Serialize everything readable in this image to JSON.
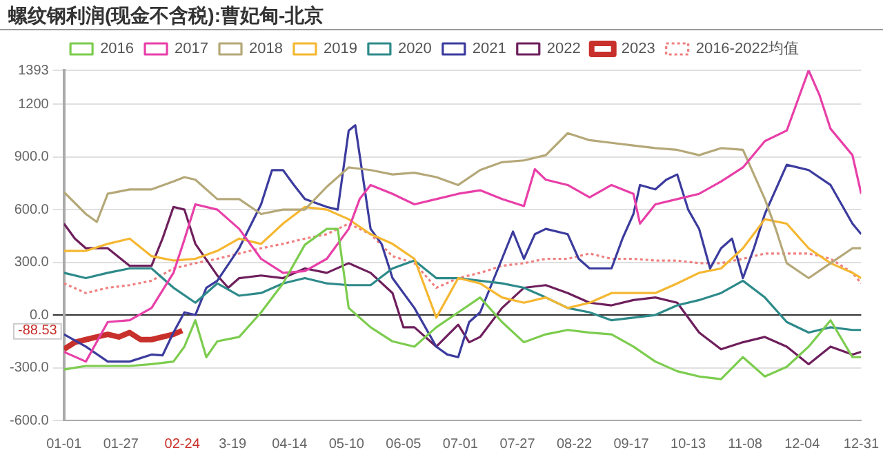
{
  "chart_data": {
    "type": "line",
    "title": "螺纹钢利润(现金不含税):曹妃甸-北京",
    "x": [
      "--01-01",
      "--01-11",
      "--01-21",
      "--01-31",
      "--02-10",
      "--02-20",
      "--03-02",
      "--03-12",
      "--03-22",
      "--04-01",
      "--04-11",
      "--04-21",
      "--05-01",
      "--05-11",
      "--05-21",
      "--05-31",
      "--06-10",
      "--06-20",
      "--06-30",
      "--07-10",
      "--07-20",
      "--07-30",
      "--08-09",
      "--08-19",
      "--08-29",
      "--09-08",
      "--09-18",
      "--09-28",
      "--10-08",
      "--10-18",
      "--10-28",
      "--11-07",
      "--11-17",
      "--11-27",
      "--12-07",
      "--12-17",
      "--12-27",
      "--12-31"
    ],
    "series": [
      {
        "name": "2016",
        "color": "#7ccc4e",
        "x": [
          "--01-01",
          "--01-11",
          "--01-21",
          "--01-31",
          "--02-10",
          "--02-20",
          "--02-25",
          "--03-02",
          "--03-07",
          "--03-12",
          "--03-22",
          "--04-01",
          "--04-11",
          "--04-21",
          "--05-01",
          "--05-06",
          "--05-11",
          "--05-21",
          "--05-31",
          "--06-10",
          "--06-20",
          "--06-30",
          "--07-10",
          "--07-20",
          "--07-30",
          "--08-09",
          "--08-19",
          "--08-29",
          "--09-08",
          "--09-18",
          "--09-28",
          "--10-08",
          "--10-18",
          "--10-28",
          "--11-07",
          "--11-17",
          "--11-27",
          "--12-07",
          "--12-17",
          "--12-27",
          "--12-31"
        ],
        "values": [
          -310,
          -290,
          -290,
          -290,
          -280,
          -265,
          -180,
          -30,
          -240,
          -150,
          -125,
          15,
          180,
          400,
          490,
          490,
          40,
          -70,
          -150,
          -180,
          -70,
          15,
          100,
          -40,
          -155,
          -110,
          -85,
          -100,
          -110,
          -180,
          -265,
          -320,
          -350,
          -365,
          -240,
          -350,
          -295,
          -180,
          -30,
          -240,
          -240
        ]
      },
      {
        "name": "2017",
        "color": "#e83fa8",
        "x": [
          "--01-01",
          "--01-11",
          "--01-21",
          "--01-31",
          "--02-10",
          "--02-20",
          "--02-25",
          "--03-02",
          "--03-12",
          "--03-22",
          "--04-01",
          "--04-11",
          "--04-21",
          "--05-01",
          "--05-11",
          "--05-16",
          "--05-21",
          "--05-31",
          "--06-10",
          "--06-20",
          "--06-30",
          "--07-10",
          "--07-20",
          "--07-30",
          "--08-04",
          "--08-09",
          "--08-19",
          "--08-29",
          "--09-08",
          "--09-18",
          "--09-21",
          "--09-28",
          "--10-08",
          "--10-18",
          "--10-28",
          "--11-07",
          "--11-17",
          "--11-27",
          "--12-07",
          "--12-12",
          "--12-17",
          "--12-27",
          "--12-31"
        ],
        "values": [
          -210,
          -265,
          -40,
          -30,
          40,
          240,
          430,
          630,
          600,
          490,
          320,
          240,
          250,
          320,
          490,
          660,
          740,
          690,
          630,
          660,
          690,
          710,
          660,
          620,
          830,
          770,
          740,
          670,
          740,
          690,
          520,
          630,
          660,
          690,
          760,
          840,
          990,
          1050,
          1393,
          1250,
          1060,
          910,
          690
        ]
      },
      {
        "name": "2018",
        "color": "#b5a878",
        "x": [
          "--01-01",
          "--01-11",
          "--01-16",
          "--01-21",
          "--01-31",
          "--02-10",
          "--02-20",
          "--02-25",
          "--03-02",
          "--03-12",
          "--03-22",
          "--04-01",
          "--04-11",
          "--04-21",
          "--05-01",
          "--05-11",
          "--05-21",
          "--05-31",
          "--06-10",
          "--06-20",
          "--06-30",
          "--07-10",
          "--07-20",
          "--07-30",
          "--08-09",
          "--08-19",
          "--08-29",
          "--09-08",
          "--09-18",
          "--09-28",
          "--10-08",
          "--10-18",
          "--10-28",
          "--11-07",
          "--11-17",
          "--11-22",
          "--11-27",
          "--12-07",
          "--12-17",
          "--12-27",
          "--12-31"
        ],
        "values": [
          700,
          575,
          530,
          690,
          715,
          715,
          760,
          785,
          770,
          660,
          660,
          575,
          600,
          600,
          730,
          840,
          825,
          800,
          810,
          785,
          740,
          825,
          870,
          880,
          910,
          1035,
          995,
          980,
          965,
          950,
          940,
          910,
          950,
          940,
          660,
          490,
          295,
          210,
          295,
          380,
          380
        ]
      },
      {
        "name": "2019",
        "color": "#f5b731",
        "values": [
          365,
          365,
          405,
          435,
          335,
          310,
          320,
          365,
          435,
          405,
          520,
          615,
          600,
          545,
          460,
          405,
          320,
          -15,
          210,
          180,
          100,
          70,
          100,
          40,
          70,
          125,
          125,
          125,
          180,
          240,
          265,
          380,
          545,
          520,
          380,
          295,
          240,
          210
        ]
      },
      {
        "name": "2020",
        "color": "#2e8a8a",
        "values": [
          240,
          210,
          240,
          265,
          265,
          155,
          70,
          180,
          110,
          125,
          180,
          210,
          180,
          170,
          170,
          265,
          310,
          210,
          210,
          195,
          180,
          155,
          100,
          40,
          15,
          -30,
          -15,
          0,
          55,
          85,
          125,
          195,
          100,
          -40,
          -100,
          -70,
          -85,
          -85
        ]
      },
      {
        "name": "2021",
        "color": "#3b3b9e",
        "x": [
          "--01-01",
          "--01-11",
          "--01-21",
          "--01-31",
          "--02-10",
          "--02-15",
          "--02-20",
          "--02-25",
          "--03-02",
          "--03-07",
          "--03-12",
          "--03-22",
          "--04-01",
          "--04-06",
          "--04-11",
          "--04-16",
          "--04-21",
          "--05-01",
          "--05-06",
          "--05-11",
          "--05-14",
          "--05-21",
          "--05-26",
          "--05-31",
          "--06-10",
          "--06-20",
          "--06-25",
          "--06-30",
          "--07-05",
          "--07-10",
          "--07-20",
          "--07-25",
          "--07-30",
          "--08-04",
          "--08-09",
          "--08-19",
          "--08-24",
          "--08-29",
          "--09-08",
          "--09-13",
          "--09-18",
          "--09-21",
          "--09-28",
          "--10-03",
          "--10-08",
          "--10-13",
          "--10-18",
          "--10-23",
          "--10-28",
          "--11-02",
          "--11-07",
          "--11-12",
          "--11-17",
          "--11-22",
          "--11-27",
          "--12-07",
          "--12-17",
          "--12-27",
          "--12-31"
        ],
        "values": [
          -110,
          -180,
          -265,
          -265,
          -225,
          -230,
          -100,
          15,
          0,
          155,
          195,
          380,
          630,
          825,
          825,
          740,
          660,
          615,
          600,
          1050,
          1080,
          490,
          405,
          210,
          40,
          -180,
          -225,
          -240,
          -40,
          15,
          320,
          475,
          320,
          460,
          490,
          460,
          320,
          265,
          265,
          435,
          575,
          740,
          715,
          770,
          800,
          600,
          490,
          265,
          380,
          435,
          210,
          380,
          575,
          715,
          855,
          825,
          740,
          520,
          460
        ]
      },
      {
        "name": "2022",
        "color": "#6e1f5c",
        "x": [
          "--01-01",
          "--01-06",
          "--01-11",
          "--01-21",
          "--01-31",
          "--02-10",
          "--02-15",
          "--02-20",
          "--02-25",
          "--03-02",
          "--03-12",
          "--03-17",
          "--03-22",
          "--04-01",
          "--04-11",
          "--04-21",
          "--05-01",
          "--05-11",
          "--05-21",
          "--05-31",
          "--06-05",
          "--06-10",
          "--06-20",
          "--06-30",
          "--07-05",
          "--07-10",
          "--07-20",
          "--07-30",
          "--08-09",
          "--08-19",
          "--08-29",
          "--09-08",
          "--09-18",
          "--09-28",
          "--10-08",
          "--10-18",
          "--10-28",
          "--11-07",
          "--11-17",
          "--11-27",
          "--12-07",
          "--12-17",
          "--12-27",
          "--12-31"
        ],
        "values": [
          520,
          435,
          380,
          380,
          280,
          280,
          435,
          615,
          600,
          405,
          225,
          155,
          210,
          225,
          210,
          265,
          240,
          295,
          240,
          125,
          -70,
          -70,
          -180,
          -55,
          -155,
          -125,
          40,
          155,
          170,
          125,
          70,
          55,
          85,
          100,
          70,
          -100,
          -195,
          -155,
          -125,
          -180,
          -280,
          -180,
          -225,
          -210
        ]
      },
      {
        "name": "2023",
        "color": "#c8302b",
        "x": [
          "--01-01",
          "--01-06",
          "--01-11",
          "--01-16",
          "--01-21",
          "--01-26",
          "--01-31",
          "--02-05",
          "--02-10",
          "--02-15",
          "--02-20",
          "--02-24"
        ],
        "values": [
          -195,
          -155,
          -140,
          -125,
          -110,
          -125,
          -100,
          -140,
          -140,
          -125,
          -110,
          -88.53
        ]
      },
      {
        "name": "2016-2022均值",
        "color": "#f08080",
        "line_style": "dotted",
        "values": [
          180,
          125,
          155,
          170,
          195,
          265,
          295,
          320,
          350,
          380,
          405,
          435,
          460,
          520,
          460,
          335,
          295,
          155,
          210,
          240,
          280,
          295,
          320,
          320,
          350,
          320,
          320,
          310,
          310,
          295,
          295,
          320,
          350,
          350,
          350,
          320,
          240,
          180
        ]
      }
    ],
    "xlim": [
      "--01-01",
      "--12-31"
    ],
    "xticks": [
      {
        "value": "--01-01",
        "label": "01-01"
      },
      {
        "value": "--01-27",
        "label": "01-27"
      },
      {
        "value": "--02-24",
        "label": "02-24"
      },
      {
        "value": "--03-19",
        "label": "3-19"
      },
      {
        "value": "--04-14",
        "label": "04-14"
      },
      {
        "value": "--05-10",
        "label": "05-10"
      },
      {
        "value": "--06-05",
        "label": "06-05"
      },
      {
        "value": "--07-01",
        "label": "07-01"
      },
      {
        "value": "--07-27",
        "label": "07-27"
      },
      {
        "value": "--08-22",
        "label": "08-22"
      },
      {
        "value": "--09-17",
        "label": "09-17"
      },
      {
        "value": "--10-13",
        "label": "10-13"
      },
      {
        "value": "--11-08",
        "label": "11-08"
      },
      {
        "value": "--12-04",
        "label": "12-04"
      },
      {
        "value": "--12-31",
        "label": "12-31"
      }
    ],
    "ylim": [
      -600,
      1393
    ],
    "yticks": [
      {
        "value": -600,
        "label": "-600.0"
      },
      {
        "value": -300,
        "label": "-300.0"
      },
      {
        "value": 0,
        "label": "0.0"
      },
      {
        "value": 300,
        "label": "300.0"
      },
      {
        "value": 600,
        "label": "600.0"
      },
      {
        "value": 900,
        "label": "900.0"
      },
      1200,
      1393
    ],
    "annotations": [
      {
        "text": "-88.53",
        "y": -88.53
      }
    ],
    "grid": "y",
    "legend": "top",
    "marker": "none",
    "line_style": "solid"
  }
}
